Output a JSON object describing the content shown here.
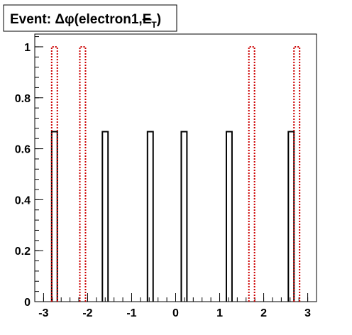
{
  "chart_data": {
    "type": "histogram",
    "title": {
      "prefix": "Event: ",
      "symbol": "Δφ",
      "args": "(electron1,",
      "met": "E",
      "met_sub": "T",
      "close": ")"
    },
    "xlabel": "",
    "ylabel": "",
    "xlim": [
      -3.2,
      3.2
    ],
    "ylim": [
      0,
      1.05
    ],
    "x_ticks": [
      -3,
      -2,
      -1,
      0,
      1,
      2,
      3
    ],
    "y_ticks": [
      0,
      0.2,
      0.4,
      0.6,
      0.8,
      1
    ],
    "x_tick_labels": [
      "-3",
      "-2",
      "-1",
      "0",
      "1",
      "2",
      "3"
    ],
    "y_tick_labels": [
      "0",
      "0.2",
      "0.4",
      "0.6",
      "0.8",
      "1"
    ],
    "bin_width": 0.128,
    "series": [
      {
        "style": "solid",
        "color": "#000000",
        "bins": [
          {
            "x": -2.752,
            "y": 0.667
          },
          {
            "x": -1.6,
            "y": 0.667
          },
          {
            "x": -0.576,
            "y": 0.667
          },
          {
            "x": 0.192,
            "y": 0.667
          },
          {
            "x": 1.216,
            "y": 0.667
          },
          {
            "x": 2.624,
            "y": 0.667
          }
        ]
      },
      {
        "style": "dotted",
        "color": "#cc0000",
        "bins": [
          {
            "x": -2.752,
            "y": 1
          },
          {
            "x": -2.112,
            "y": 1
          },
          {
            "x": 1.728,
            "y": 1
          },
          {
            "x": 2.752,
            "y": 1
          }
        ]
      }
    ]
  }
}
